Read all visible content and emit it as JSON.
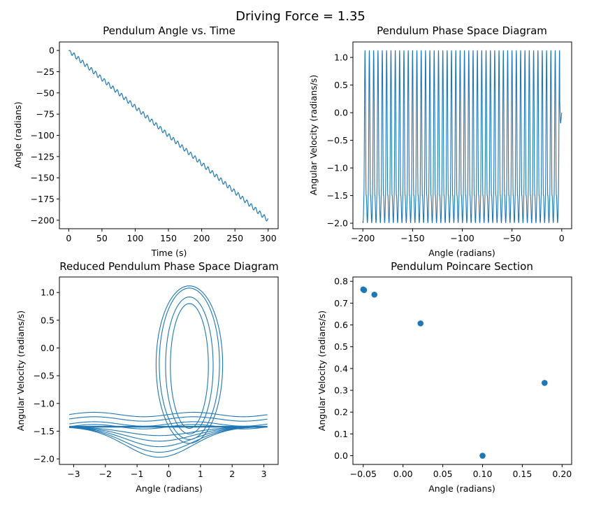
{
  "figure": {
    "suptitle": "Driving Force = 1.35"
  },
  "colors": {
    "series": "#1f77b4",
    "axis": "#000000",
    "background": "#ffffff"
  },
  "chart_data": [
    {
      "id": "angle-vs-time",
      "type": "line",
      "title": "Pendulum Angle vs. Time",
      "xlabel": "Time (s)",
      "ylabel": "Angle (radians)",
      "xlim": [
        -14,
        315
      ],
      "ylim": [
        -210,
        10
      ],
      "xticks": [
        0,
        50,
        100,
        150,
        200,
        250,
        300
      ],
      "xtick_labels": [
        "0",
        "50",
        "100",
        "150",
        "200",
        "250",
        "300"
      ],
      "yticks": [
        0,
        -25,
        -50,
        -75,
        -100,
        -125,
        -150,
        -175,
        -200
      ],
      "ytick_labels": [
        "0",
        "−25",
        "−50",
        "−75",
        "−100",
        "−125",
        "−150",
        "−175",
        "−200"
      ],
      "series": [
        {
          "style": "line",
          "x": [
            0,
            300
          ],
          "y": [
            0,
            -200
          ],
          "description_values": {
            "trend_start": 0,
            "trend_end": -200,
            "period_s": 6.5,
            "ripple_amplitude": 2.5
          }
        }
      ]
    },
    {
      "id": "phase-space",
      "type": "line",
      "title": "Pendulum Phase Space Diagram",
      "xlabel": "Angle (radians)",
      "ylabel": "Angular Velocity (radians/s)",
      "xlim": [
        -210,
        10
      ],
      "ylim": [
        -2.1,
        1.28
      ],
      "xticks": [
        -200,
        -150,
        -100,
        -50,
        0
      ],
      "xtick_labels": [
        "−200",
        "−150",
        "−100",
        "−50",
        "0"
      ],
      "yticks": [
        1.0,
        0.5,
        0.0,
        -0.5,
        -1.0,
        -1.5,
        -2.0
      ],
      "ytick_labels": [
        "1.0",
        "0.5",
        "0.0",
        "−0.5",
        "−1.0",
        "−1.5",
        "−2.0"
      ],
      "series": [
        {
          "style": "line",
          "x_range": [
            -200,
            0
          ],
          "y_max": 1.13,
          "y_min": -1.96,
          "lower_band": [
            -1.4,
            -1.68
          ],
          "cycles": 46
        }
      ]
    },
    {
      "id": "reduced-phase-space",
      "type": "line",
      "title": "Reduced Pendulum Phase Space Diagram",
      "xlabel": "Angle (radians)",
      "ylabel": "Angular Velocity (radians/s)",
      "xlim": [
        -3.45,
        3.45
      ],
      "ylim": [
        -2.1,
        1.28
      ],
      "xticks": [
        -3,
        -2,
        -1,
        0,
        1,
        2,
        3
      ],
      "xtick_labels": [
        "−3",
        "−2",
        "−1",
        "0",
        "1",
        "2",
        "3"
      ],
      "yticks": [
        1.0,
        0.5,
        0.0,
        -0.5,
        -1.0,
        -1.5,
        -2.0
      ],
      "ytick_labels": [
        "1.0",
        "0.5",
        "0.0",
        "−0.5",
        "−1.0",
        "−1.5",
        "−2.0"
      ],
      "series": [
        {
          "style": "line",
          "x_range": [
            -3.14,
            3.14
          ],
          "loop_center": [
            0.65,
            -0.3
          ],
          "loop_y_max": 1.12,
          "loop_y_min": -1.97,
          "bands": [
            -1.2,
            -1.28,
            -1.37,
            -1.42
          ]
        }
      ]
    },
    {
      "id": "poincare",
      "type": "scatter",
      "title": "Pendulum Poincare Section",
      "xlabel": "Angle (radians)",
      "ylabel": "Angular Velocity (radians/s)",
      "xlim": [
        -0.063,
        0.212
      ],
      "ylim": [
        -0.04,
        0.82
      ],
      "xticks": [
        -0.05,
        0.0,
        0.05,
        0.1,
        0.15,
        0.2
      ],
      "xtick_labels": [
        "−0.05",
        "0.00",
        "0.05",
        "0.10",
        "0.15",
        "0.20"
      ],
      "yticks": [
        0.0,
        0.1,
        0.2,
        0.3,
        0.4,
        0.5,
        0.6,
        0.7,
        0.8
      ],
      "ytick_labels": [
        "0.0",
        "0.1",
        "0.2",
        "0.3",
        "0.4",
        "0.5",
        "0.6",
        "0.7",
        "0.8"
      ],
      "series": [
        {
          "style": "scatter",
          "x": [
            -0.05,
            -0.049,
            -0.036,
            0.022,
            0.178,
            0.1
          ],
          "y": [
            0.763,
            0.76,
            0.739,
            0.607,
            0.334,
            0.0
          ]
        }
      ]
    }
  ]
}
